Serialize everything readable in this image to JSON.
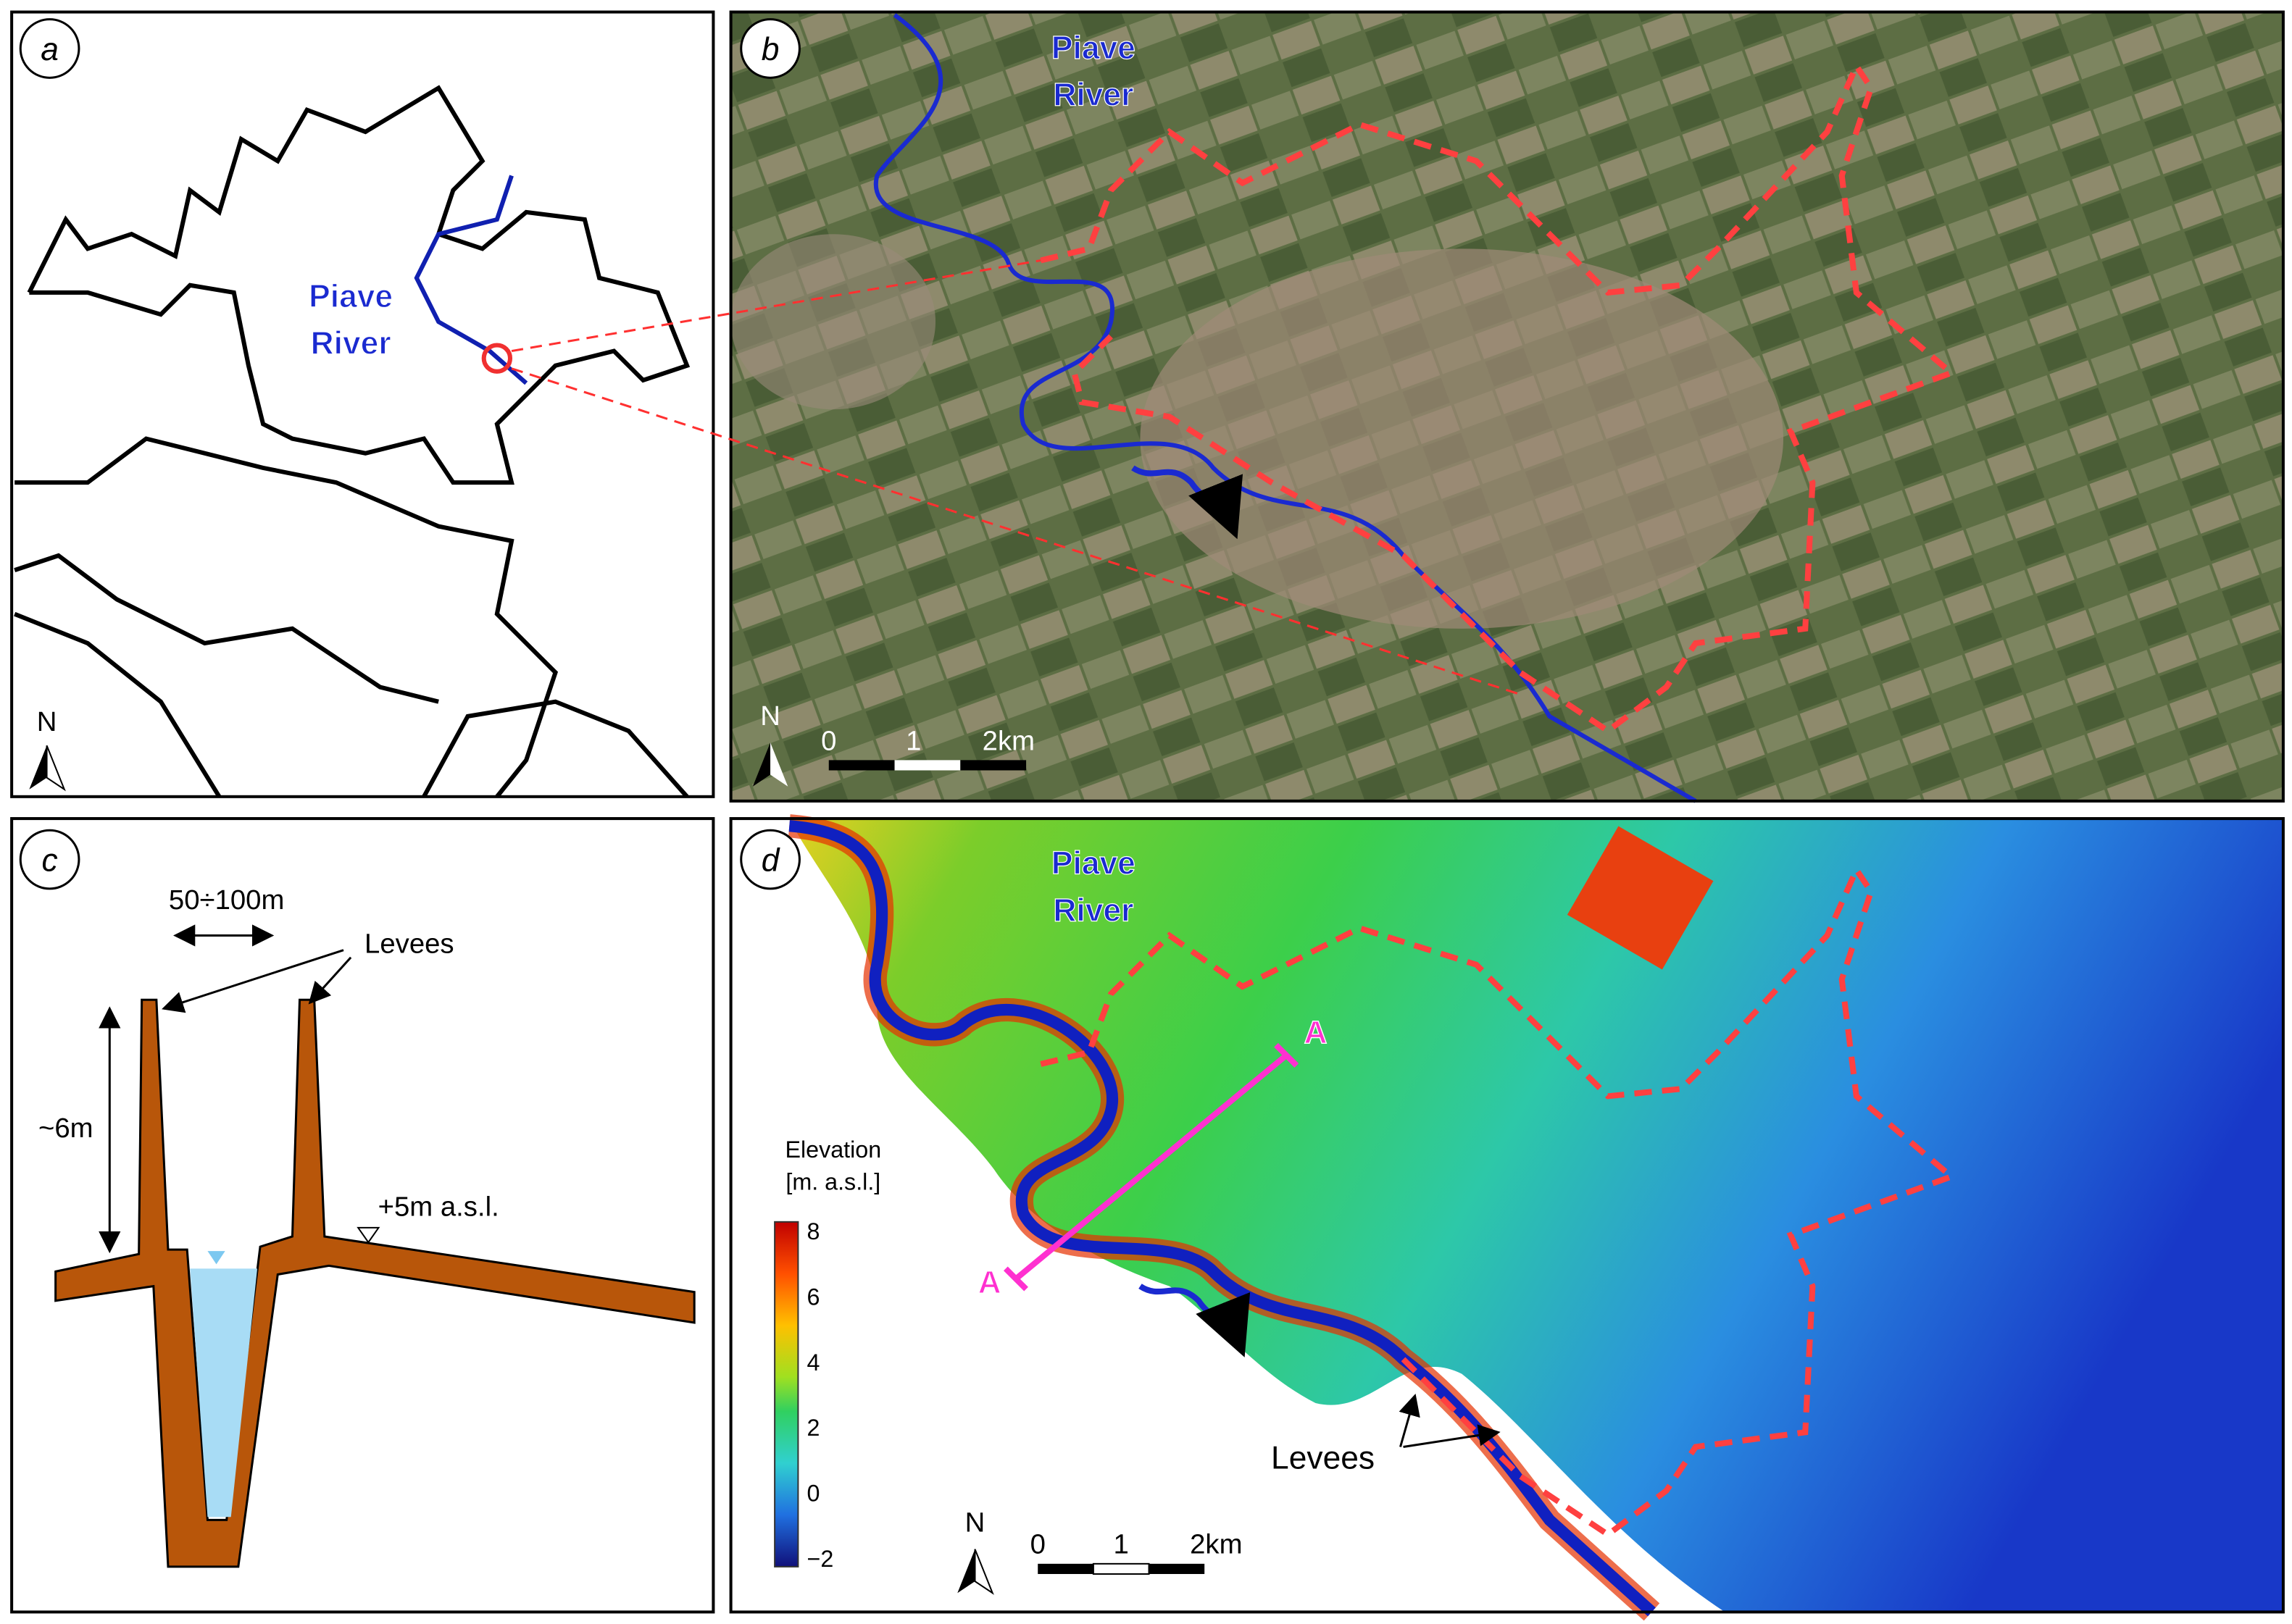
{
  "panels": {
    "a": {
      "label": "a",
      "river_label": [
        "Piave",
        "River"
      ],
      "north": "N"
    },
    "b": {
      "label": "b",
      "river_label": [
        "Piave",
        "River"
      ],
      "north": "N",
      "scale": [
        "0",
        "1",
        "2km"
      ]
    },
    "c": {
      "label": "c",
      "width": "50÷100m",
      "levees": "Levees",
      "height": "~6m",
      "ground": "+5m a.s.l."
    },
    "d": {
      "label": "d",
      "river_label": [
        "Piave",
        "River"
      ],
      "section_start": "A",
      "section_end": "A",
      "legend_title": [
        "Elevation",
        "[m. a.s.l.]"
      ],
      "legend_ticks": [
        "8",
        "6",
        "4",
        "2",
        "0",
        "−2"
      ],
      "levees": "Levees",
      "north": "N",
      "scale": [
        "0",
        "1",
        "2km"
      ]
    }
  }
}
